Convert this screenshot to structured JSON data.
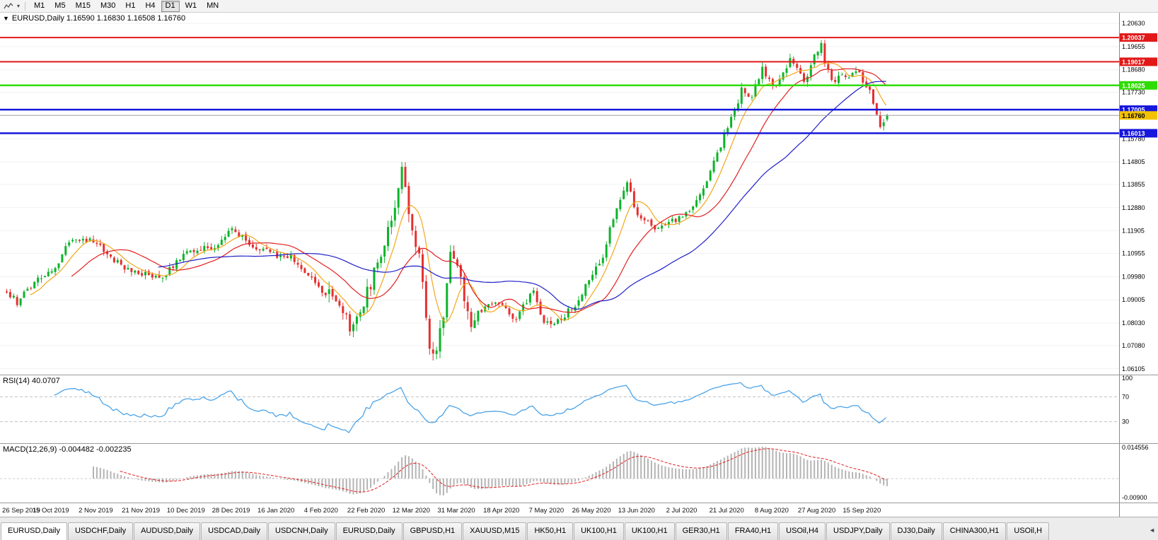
{
  "toolbar": {
    "timeframes": [
      "M1",
      "M5",
      "M15",
      "M30",
      "H1",
      "H4",
      "D1",
      "W1",
      "MN"
    ],
    "selected": "D1"
  },
  "chart": {
    "collapse_marker": "▼",
    "title_text": "EURUSD,Daily 1.16590 1.16830 1.16508 1.16760",
    "symbol": "EURUSD",
    "period": "Daily",
    "ohlc": {
      "open": "1.16590",
      "high": "1.16830",
      "low": "1.16508",
      "close": "1.16760"
    },
    "current_price": {
      "label": "1.16760",
      "value": 1.1676,
      "badge_bg": "#f2c200",
      "badge_text": "#000000",
      "line_color": "#a0a0a0"
    },
    "levels": [
      {
        "label": "1.20037",
        "value": 1.20037,
        "color": "#e21818",
        "width": 2
      },
      {
        "label": "1.19017",
        "value": 1.19017,
        "color": "#e21818",
        "width": 2
      },
      {
        "label": "1.18025",
        "value": 1.18025,
        "color": "#2fdc00",
        "width": 2.5
      },
      {
        "label": "1.17005",
        "value": 1.17005,
        "color": "#1616dc",
        "width": 2.5
      },
      {
        "label": "1.16013",
        "value": 1.16013,
        "color": "#1616dc",
        "width": 2.5
      }
    ],
    "y_axis": {
      "top": 1.2108,
      "bottom": 1.0586,
      "labels": [
        {
          "label": "1.20630",
          "value": 1.2063
        },
        {
          "label": "1.19655",
          "value": 1.19655
        },
        {
          "label": "1.18680",
          "value": 1.1868
        },
        {
          "label": "1.17730",
          "value": 1.1773
        },
        {
          "label": "1.15780",
          "value": 1.1578
        },
        {
          "label": "1.14805",
          "value": 1.14805
        },
        {
          "label": "1.13855",
          "value": 1.13855
        },
        {
          "label": "1.12880",
          "value": 1.1288
        },
        {
          "label": "1.11905",
          "value": 1.11905
        },
        {
          "label": "1.10955",
          "value": 1.10955
        },
        {
          "label": "1.09980",
          "value": 1.0998
        },
        {
          "label": "1.09005",
          "value": 1.09005
        },
        {
          "label": "1.08030",
          "value": 1.0803
        },
        {
          "label": "1.07080",
          "value": 1.0708
        },
        {
          "label": "1.06105",
          "value": 1.06105
        }
      ]
    }
  },
  "chart_data": {
    "type": "candlestick",
    "symbol": "EURUSD",
    "timeframe": "Daily",
    "candle_count": 255,
    "last_candle": {
      "open": 1.1659,
      "high": 1.1683,
      "low": 1.16508,
      "close": 1.1676
    },
    "up_color": "#0cb42a",
    "down_color": "#e53030",
    "price_anchors": [
      [
        0,
        1.0935
      ],
      [
        3,
        1.089
      ],
      [
        8,
        1.097
      ],
      [
        14,
        1.104
      ],
      [
        18,
        1.114
      ],
      [
        25,
        1.1155
      ],
      [
        30,
        1.107
      ],
      [
        38,
        1.101
      ],
      [
        45,
        1.1
      ],
      [
        50,
        1.108
      ],
      [
        55,
        1.112
      ],
      [
        60,
        1.111
      ],
      [
        65,
        1.121
      ],
      [
        70,
        1.113
      ],
      [
        78,
        1.109
      ],
      [
        82,
        1.108
      ],
      [
        90,
        1.095
      ],
      [
        95,
        1.09
      ],
      [
        99,
        1.079
      ],
      [
        102,
        1.085
      ],
      [
        107,
        1.105
      ],
      [
        112,
        1.13
      ],
      [
        114,
        1.145
      ],
      [
        117,
        1.118
      ],
      [
        119,
        1.111
      ],
      [
        122,
        1.07
      ],
      [
        123,
        1.065
      ],
      [
        126,
        1.082
      ],
      [
        128,
        1.109
      ],
      [
        130,
        1.103
      ],
      [
        134,
        1.08
      ],
      [
        138,
        1.088
      ],
      [
        142,
        1.089
      ],
      [
        147,
        1.082
      ],
      [
        152,
        1.095
      ],
      [
        155,
        1.08
      ],
      [
        160,
        1.082
      ],
      [
        165,
        1.09
      ],
      [
        172,
        1.109
      ],
      [
        175,
        1.125
      ],
      [
        179,
        1.139
      ],
      [
        182,
        1.125
      ],
      [
        188,
        1.12
      ],
      [
        192,
        1.123
      ],
      [
        197,
        1.128
      ],
      [
        202,
        1.14
      ],
      [
        207,
        1.159
      ],
      [
        212,
        1.178
      ],
      [
        215,
        1.176
      ],
      [
        218,
        1.187
      ],
      [
        222,
        1.179
      ],
      [
        226,
        1.192
      ],
      [
        230,
        1.182
      ],
      [
        235,
        1.199
      ],
      [
        236,
        1.191
      ],
      [
        238,
        1.181
      ],
      [
        242,
        1.185
      ],
      [
        246,
        1.1845
      ],
      [
        249,
        1.178
      ],
      [
        252,
        1.163
      ],
      [
        254,
        1.1676
      ]
    ],
    "moving_averages": [
      {
        "period": 8,
        "color": "#f2a71b"
      },
      {
        "period": 20,
        "color": "#e02020"
      },
      {
        "period": 45,
        "color": "#2020c8"
      }
    ],
    "x_labels": [
      "26 Sep 2019",
      "15 Oct 2019",
      "2 Nov 2019",
      "21 Nov 2019",
      "10 Dec 2019",
      "28 Dec 2019",
      "16 Jan 2020",
      "4 Feb 2020",
      "22 Feb 2020",
      "12 Mar 2020",
      "31 Mar 2020",
      "18 Apr 2020",
      "7 May 2020",
      "26 May 2020",
      "13 Jun 2020",
      "2 Jul 2020",
      "21 Jul 2020",
      "8 Aug 2020",
      "27 Aug 2020",
      "15 Sep 2020"
    ],
    "x_label_step": 13,
    "indicators": [
      {
        "name": "RSI",
        "params": [
          14
        ],
        "current": 40.0707
      },
      {
        "name": "MACD",
        "params": [
          12,
          26,
          9
        ],
        "current": [
          -0.004482,
          -0.002235
        ]
      }
    ]
  },
  "rsi": {
    "label": "RSI(14) 40.0707",
    "value": 40.0707,
    "line_color": "#4aa3e8",
    "levels": [
      {
        "label": "100",
        "value": 100,
        "line": false
      },
      {
        "label": "70",
        "value": 70,
        "line": true
      },
      {
        "label": "30",
        "value": 30,
        "line": true
      }
    ]
  },
  "macd": {
    "label": "MACD(12,26,9) -0.004482 -0.002235",
    "macd_value": -0.004482,
    "signal_value": -0.002235,
    "scale_top": {
      "label": "0.014556",
      "value": 0.014556
    },
    "scale_bottom": {
      "label": "-0.00900",
      "value": -0.009
    },
    "histogram_color": "#b4b4b4",
    "signal_color": "#e02020"
  },
  "tabs": {
    "active_index": 0,
    "scroll_arrow": "◄",
    "items": [
      "EURUSD,Daily",
      "USDCHF,Daily",
      "AUDUSD,Daily",
      "USDCAD,Daily",
      "USDCNH,Daily",
      "EURUSD,Daily",
      "GBPUSD,H1",
      "XAUUSD,M15",
      "HK50,H1",
      "UK100,H1",
      "UK100,H1",
      "GER30,H1",
      "FRA40,H1",
      "USOil,H4",
      "USDJPY,Daily",
      "DJ30,Daily",
      "CHINA300,H1",
      "USOil,H"
    ]
  }
}
